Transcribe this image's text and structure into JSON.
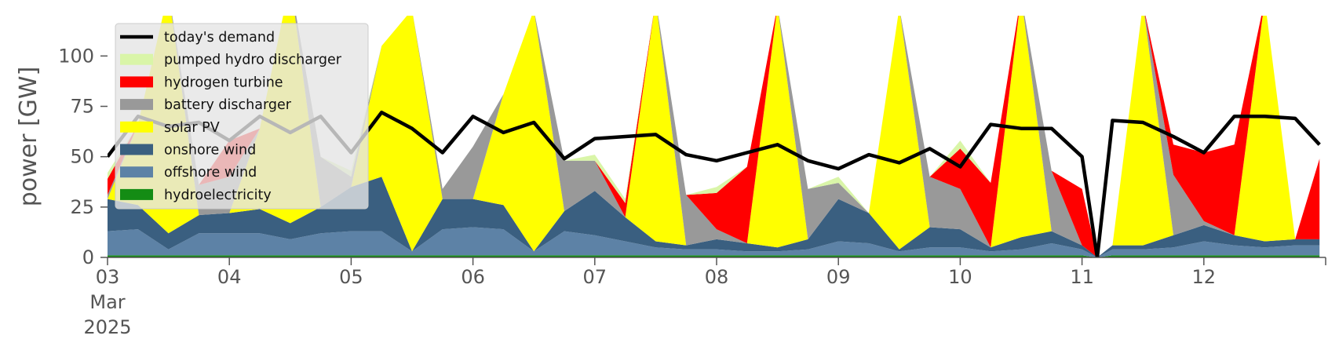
{
  "chart_data": {
    "type": "area",
    "ylabel": "power [GW]",
    "ylim": [
      0,
      120
    ],
    "yticks": [
      0,
      25,
      50,
      75,
      100
    ],
    "xlim": [
      0,
      10
    ],
    "xticks": [
      {
        "x": 0,
        "label": "03",
        "sub1": "Mar",
        "sub2": "2025"
      },
      {
        "x": 1,
        "label": "04"
      },
      {
        "x": 2,
        "label": "05"
      },
      {
        "x": 3,
        "label": "06"
      },
      {
        "x": 4,
        "label": "07"
      },
      {
        "x": 5,
        "label": "08"
      },
      {
        "x": 6,
        "label": "09"
      },
      {
        "x": 7,
        "label": "10"
      },
      {
        "x": 8,
        "label": "11"
      },
      {
        "x": 9,
        "label": "12"
      }
    ],
    "legend_position": "top-left",
    "colors": {
      "demand": "#000000",
      "pumped": "#d9f5a8",
      "hydrogen": "#ff0000",
      "battery": "#999999",
      "solar": "#ffff00",
      "onshore": "#3a5f80",
      "offshore": "#5d82a6",
      "hydro": "#148c14"
    },
    "legend": [
      {
        "key": "demand",
        "label": "today's demand",
        "kind": "line"
      },
      {
        "key": "pumped",
        "label": "pumped hydro discharger",
        "kind": "patch"
      },
      {
        "key": "hydrogen",
        "label": "hydrogen turbine",
        "kind": "patch"
      },
      {
        "key": "battery",
        "label": "battery discharger",
        "kind": "patch"
      },
      {
        "key": "solar",
        "label": "solar PV",
        "kind": "patch"
      },
      {
        "key": "onshore",
        "label": "onshore wind",
        "kind": "patch"
      },
      {
        "key": "offshore",
        "label": "offshore wind",
        "kind": "patch"
      },
      {
        "key": "hydro",
        "label": "hydroelectricity",
        "kind": "patch"
      }
    ],
    "x": [
      0,
      0.25,
      0.5,
      0.75,
      1,
      1.25,
      1.5,
      1.75,
      2,
      2.25,
      2.5,
      2.75,
      3,
      3.25,
      3.5,
      3.75,
      4,
      4.25,
      4.5,
      4.75,
      5,
      5.25,
      5.5,
      5.75,
      6,
      6.25,
      6.5,
      6.75,
      7,
      7.25,
      7.5,
      7.75,
      8,
      8.125,
      8.25,
      8.5,
      8.75,
      9,
      9.25,
      9.5,
      9.75,
      9.95
    ],
    "series": [
      {
        "key": "hydro",
        "name": "hydroelectricity",
        "values": [
          1,
          1,
          1,
          1,
          1,
          1,
          1,
          1,
          1,
          1,
          1,
          1,
          1,
          1,
          1,
          1,
          1,
          1,
          1,
          1,
          1,
          1,
          1,
          1,
          1,
          1,
          1,
          1,
          1,
          1,
          1,
          1,
          1,
          0,
          1,
          1,
          1,
          1,
          1,
          1,
          1,
          1
        ]
      },
      {
        "key": "offshore",
        "name": "offshore wind",
        "values": [
          12,
          13,
          3,
          11,
          11,
          11,
          8,
          11,
          12,
          12,
          2,
          13,
          14,
          13,
          2,
          12,
          10,
          7,
          4,
          3,
          3,
          2,
          2,
          3,
          7,
          6,
          2,
          4,
          4,
          2,
          3,
          6,
          3,
          0,
          3,
          3,
          4,
          7,
          5,
          4,
          5,
          5
        ]
      },
      {
        "key": "onshore",
        "name": "onshore wind",
        "values": [
          16,
          12,
          8,
          9,
          10,
          12,
          8,
          13,
          22,
          27,
          0,
          15,
          14,
          12,
          0,
          10,
          22,
          12,
          3,
          2,
          5,
          4,
          2,
          5,
          21,
          15,
          1,
          10,
          9,
          2,
          6,
          6,
          2,
          0,
          2,
          2,
          6,
          8,
          5,
          3,
          3,
          3
        ]
      },
      {
        "key": "solar",
        "name": "solar PV",
        "values": [
          0,
          40,
          120,
          0,
          0,
          40,
          120,
          0,
          0,
          65,
          120,
          0,
          0,
          55,
          120,
          0,
          0,
          0,
          120,
          0,
          0,
          0,
          120,
          0,
          0,
          0,
          120,
          0,
          0,
          0,
          120,
          0,
          0,
          0,
          0,
          120,
          0,
          0,
          0,
          120,
          0,
          0
        ]
      },
      {
        "key": "battery",
        "name": "battery discharger",
        "values": [
          2,
          0,
          0,
          15,
          18,
          0,
          0,
          25,
          5,
          0,
          0,
          5,
          26,
          0,
          0,
          25,
          15,
          0,
          0,
          25,
          5,
          0,
          0,
          25,
          8,
          0,
          0,
          25,
          20,
          0,
          0,
          30,
          0,
          0,
          0,
          0,
          30,
          2,
          0,
          0,
          0,
          0
        ]
      },
      {
        "key": "hydrogen",
        "name": "hydrogen turbine",
        "values": [
          8,
          0,
          0,
          0,
          18,
          0,
          0,
          0,
          0,
          0,
          0,
          0,
          0,
          0,
          0,
          0,
          0,
          7,
          0,
          0,
          18,
          38,
          0,
          0,
          0,
          0,
          0,
          0,
          20,
          32,
          0,
          0,
          28,
          0,
          0,
          0,
          15,
          34,
          45,
          0,
          0,
          40
        ]
      },
      {
        "key": "pumped",
        "name": "pumped hydro discharger",
        "values": [
          3,
          0,
          0,
          0,
          0,
          0,
          0,
          0,
          3,
          0,
          0,
          0,
          0,
          0,
          0,
          0,
          3,
          2,
          0,
          0,
          3,
          0,
          0,
          0,
          3,
          0,
          0,
          0,
          4,
          0,
          0,
          0,
          0,
          0,
          0,
          0,
          0,
          0,
          0,
          0,
          0,
          0
        ]
      }
    ],
    "demand": [
      50,
      70,
      65,
      67,
      58,
      70,
      62,
      70,
      52,
      72,
      64,
      52,
      70,
      62,
      67,
      49,
      59,
      60,
      61,
      51,
      48,
      52,
      56,
      48,
      44,
      51,
      47,
      54,
      45,
      66,
      64,
      64,
      50,
      0,
      68,
      67,
      60,
      52,
      70,
      70,
      69,
      56
    ]
  }
}
